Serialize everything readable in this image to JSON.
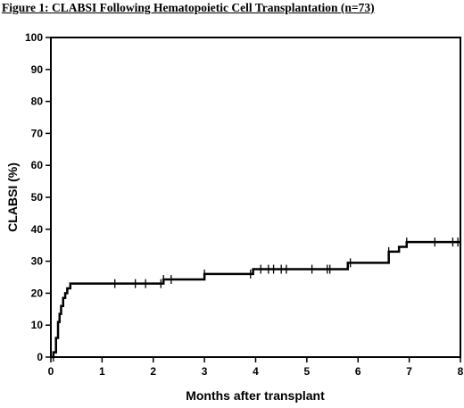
{
  "figure": {
    "title": "Figure 1: CLABSI Following Hematopoietic Cell Transplantation (n=73)"
  },
  "chart_data": {
    "type": "line",
    "xlabel": "Months after transplant",
    "ylabel": "CLABSI (%)",
    "xlim": [
      0,
      8
    ],
    "ylim": [
      0,
      100
    ],
    "xticks": [
      0,
      1,
      2,
      3,
      4,
      5,
      6,
      7,
      8
    ],
    "yticks": [
      0,
      10,
      20,
      30,
      40,
      50,
      60,
      70,
      80,
      90,
      100
    ],
    "grid": false,
    "series": [
      {
        "step": [
          [
            0,
            0
          ],
          [
            0.05,
            1.5
          ],
          [
            0.1,
            6
          ],
          [
            0.14,
            11
          ],
          [
            0.17,
            13.5
          ],
          [
            0.2,
            16
          ],
          [
            0.24,
            18.5
          ],
          [
            0.28,
            20
          ],
          [
            0.32,
            21.5
          ],
          [
            0.38,
            23
          ],
          [
            2.2,
            24.3
          ],
          [
            3.0,
            26
          ],
          [
            3.95,
            27.5
          ],
          [
            5.8,
            29.5
          ],
          [
            6.6,
            33
          ],
          [
            6.8,
            34.5
          ],
          [
            6.95,
            36
          ],
          [
            8.0,
            36
          ]
        ],
        "censored": [
          [
            0.05,
            0
          ],
          [
            1.25,
            23
          ],
          [
            1.65,
            23
          ],
          [
            1.85,
            23
          ],
          [
            2.15,
            23
          ],
          [
            2.2,
            24.3
          ],
          [
            2.35,
            24.3
          ],
          [
            3.0,
            26
          ],
          [
            3.9,
            26
          ],
          [
            4.1,
            27.5
          ],
          [
            4.25,
            27.5
          ],
          [
            4.35,
            27.5
          ],
          [
            4.5,
            27.5
          ],
          [
            4.6,
            27.5
          ],
          [
            5.1,
            27.5
          ],
          [
            5.4,
            27.5
          ],
          [
            5.45,
            27.5
          ],
          [
            5.85,
            29.5
          ],
          [
            6.6,
            33
          ],
          [
            6.95,
            36
          ],
          [
            7.5,
            36
          ],
          [
            7.85,
            36
          ],
          [
            7.95,
            36
          ]
        ]
      }
    ]
  }
}
